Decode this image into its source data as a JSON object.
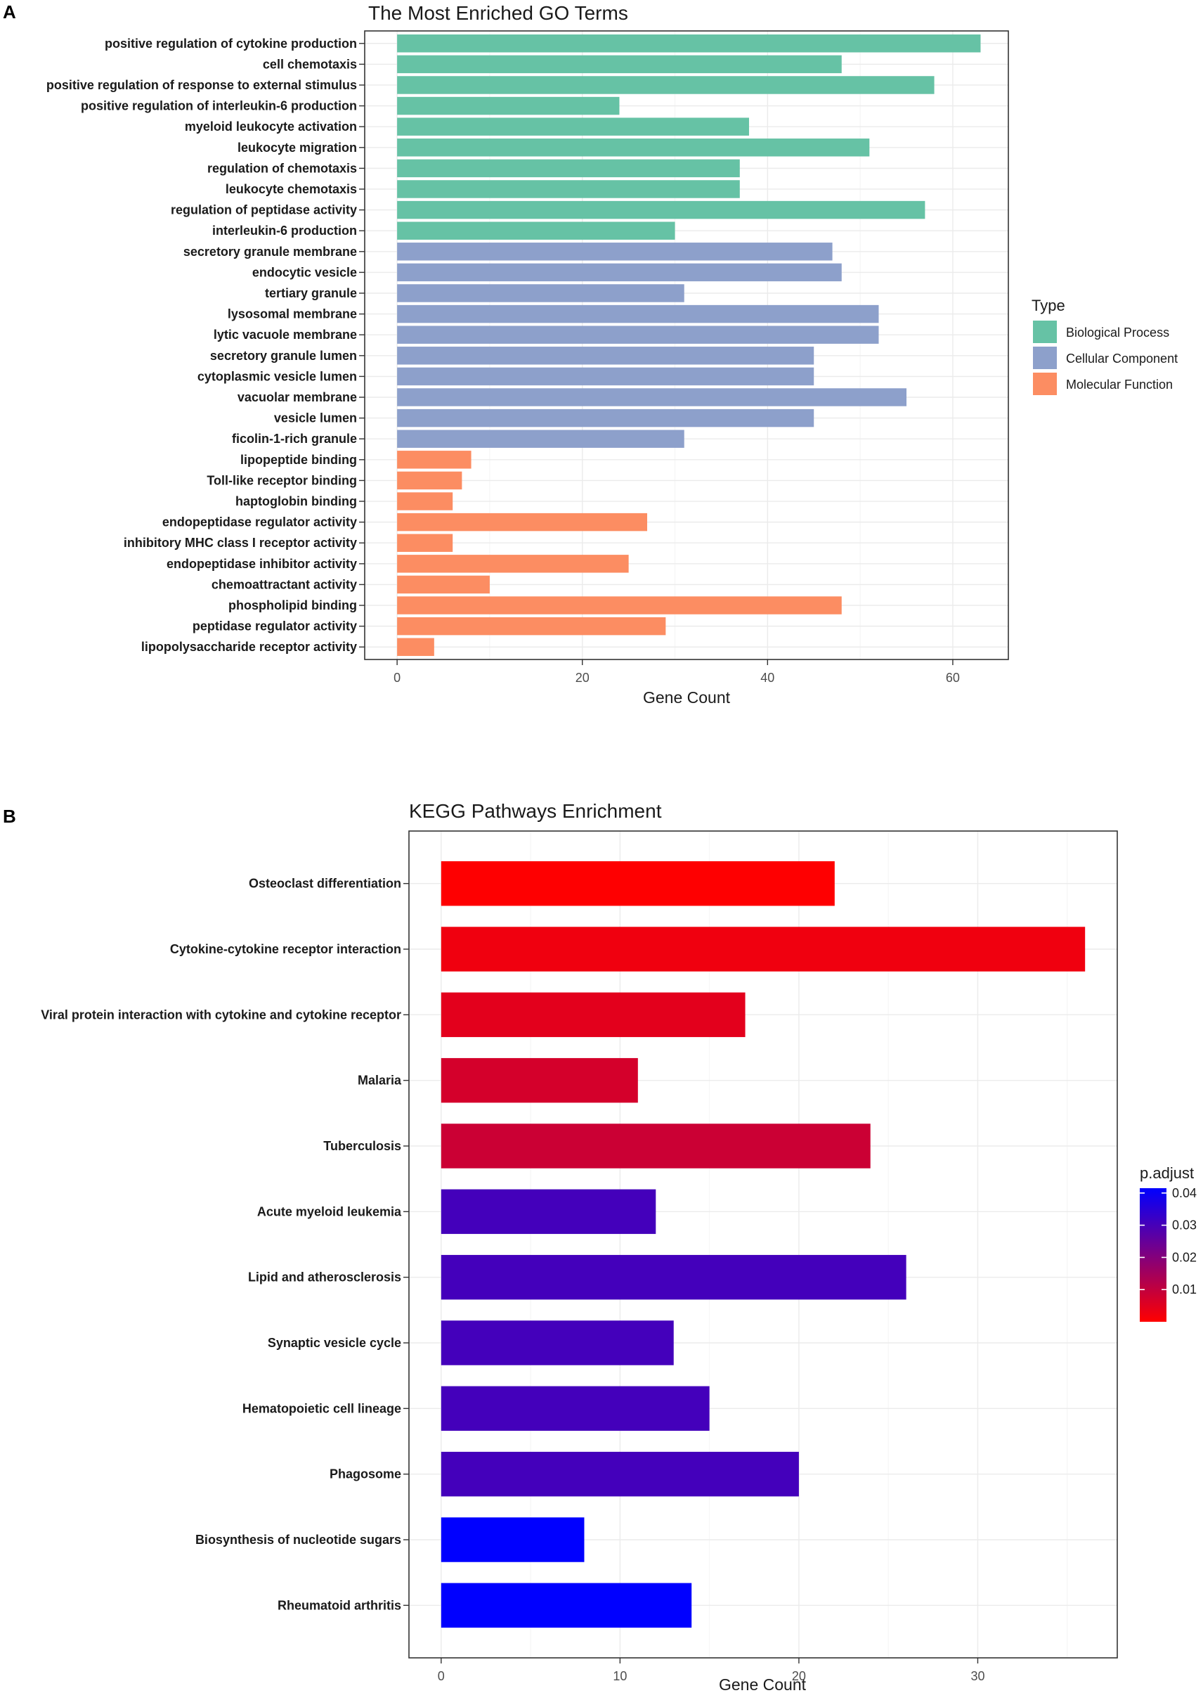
{
  "chart_data": [
    {
      "panel": "A",
      "type": "bar",
      "orientation": "horizontal",
      "title": "The Most Enriched GO Terms",
      "xlabel": "Gene Count",
      "ylabel": "",
      "xlim": [
        -3.5,
        66
      ],
      "xticks": [
        0,
        20,
        40,
        60
      ],
      "legend": {
        "title": "Type",
        "placement": "right",
        "entries": [
          {
            "label": "Biological Process",
            "color": "#66C2A5"
          },
          {
            "label": "Cellular Component",
            "color": "#8DA0CB"
          },
          {
            "label": "Molecular Function",
            "color": "#FC8D62"
          }
        ]
      },
      "bars": [
        {
          "label": "positive regulation of cytokine production",
          "value": 63,
          "group": "Biological Process"
        },
        {
          "label": "cell chemotaxis",
          "value": 48,
          "group": "Biological Process"
        },
        {
          "label": "positive regulation of response to external stimulus",
          "value": 58,
          "group": "Biological Process"
        },
        {
          "label": "positive regulation of interleukin-6 production",
          "value": 24,
          "group": "Biological Process"
        },
        {
          "label": "myeloid leukocyte activation",
          "value": 38,
          "group": "Biological Process"
        },
        {
          "label": "leukocyte migration",
          "value": 51,
          "group": "Biological Process"
        },
        {
          "label": "regulation of chemotaxis",
          "value": 37,
          "group": "Biological Process"
        },
        {
          "label": "leukocyte chemotaxis",
          "value": 37,
          "group": "Biological Process"
        },
        {
          "label": "regulation of peptidase activity",
          "value": 57,
          "group": "Biological Process"
        },
        {
          "label": "interleukin-6 production",
          "value": 30,
          "group": "Biological Process"
        },
        {
          "label": "secretory granule membrane",
          "value": 47,
          "group": "Cellular Component"
        },
        {
          "label": "endocytic vesicle",
          "value": 48,
          "group": "Cellular Component"
        },
        {
          "label": "tertiary granule",
          "value": 31,
          "group": "Cellular Component"
        },
        {
          "label": "lysosomal membrane",
          "value": 52,
          "group": "Cellular Component"
        },
        {
          "label": "lytic vacuole membrane",
          "value": 52,
          "group": "Cellular Component"
        },
        {
          "label": "secretory granule lumen",
          "value": 45,
          "group": "Cellular Component"
        },
        {
          "label": "cytoplasmic vesicle lumen",
          "value": 45,
          "group": "Cellular Component"
        },
        {
          "label": "vacuolar membrane",
          "value": 55,
          "group": "Cellular Component"
        },
        {
          "label": "vesicle lumen",
          "value": 45,
          "group": "Cellular Component"
        },
        {
          "label": "ficolin-1-rich granule",
          "value": 31,
          "group": "Cellular Component"
        },
        {
          "label": "lipopeptide binding",
          "value": 8,
          "group": "Molecular Function"
        },
        {
          "label": "Toll-like receptor binding",
          "value": 7,
          "group": "Molecular Function"
        },
        {
          "label": "haptoglobin binding",
          "value": 6,
          "group": "Molecular Function"
        },
        {
          "label": "endopeptidase regulator activity",
          "value": 27,
          "group": "Molecular Function"
        },
        {
          "label": "inhibitory MHC class I receptor activity",
          "value": 6,
          "group": "Molecular Function"
        },
        {
          "label": "endopeptidase inhibitor activity",
          "value": 25,
          "group": "Molecular Function"
        },
        {
          "label": "chemoattractant activity",
          "value": 10,
          "group": "Molecular Function"
        },
        {
          "label": "phospholipid binding",
          "value": 48,
          "group": "Molecular Function"
        },
        {
          "label": "peptidase regulator activity",
          "value": 29,
          "group": "Molecular Function"
        },
        {
          "label": "lipopolysaccharide receptor activity",
          "value": 4,
          "group": "Molecular Function"
        }
      ]
    },
    {
      "panel": "B",
      "type": "bar",
      "orientation": "horizontal",
      "title": "KEGG Pathways Enrichment",
      "xlabel": "Gene Count",
      "ylabel": "",
      "xlim": [
        -1.8,
        37.8
      ],
      "xticks": [
        0,
        10,
        20,
        30
      ],
      "colorbar": {
        "title": "p.adjust",
        "placement": "right",
        "range": [
          0.0,
          0.0415
        ],
        "ticks": [
          0.01,
          0.02,
          0.03,
          0.04
        ],
        "tick_labels": [
          "0.01",
          "0.02",
          "0.03",
          "0.04"
        ],
        "color_low": "#FF0000",
        "color_high": "#0000FF"
      },
      "bars": [
        {
          "label": "Osteoclast differentiation",
          "value": 22,
          "p_adjust": 0.0001
        },
        {
          "label": "Cytokine-cytokine receptor interaction",
          "value": 36,
          "p_adjust": 0.0025
        },
        {
          "label": "Viral protein interaction with cytokine and cytokine receptor",
          "value": 17,
          "p_adjust": 0.0045
        },
        {
          "label": "Malaria",
          "value": 11,
          "p_adjust": 0.007
        },
        {
          "label": "Tuberculosis",
          "value": 24,
          "p_adjust": 0.0085
        },
        {
          "label": "Acute myeloid leukemia",
          "value": 12,
          "p_adjust": 0.0305
        },
        {
          "label": "Lipid and atherosclerosis",
          "value": 26,
          "p_adjust": 0.0305
        },
        {
          "label": "Synaptic vesicle cycle",
          "value": 13,
          "p_adjust": 0.0305
        },
        {
          "label": "Hematopoietic cell lineage",
          "value": 15,
          "p_adjust": 0.0305
        },
        {
          "label": "Phagosome",
          "value": 20,
          "p_adjust": 0.0305
        },
        {
          "label": "Biosynthesis of nucleotide sugars",
          "value": 8,
          "p_adjust": 0.0415
        },
        {
          "label": "Rheumatoid arthritis",
          "value": 14,
          "p_adjust": 0.0415
        }
      ]
    }
  ]
}
